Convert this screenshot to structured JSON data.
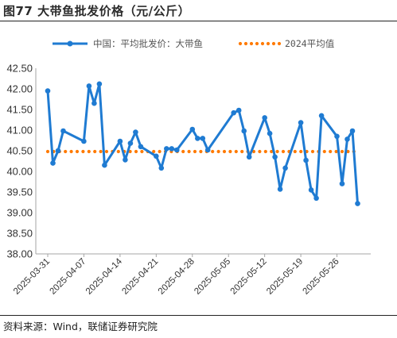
{
  "title": "图77 大带鱼批发价格（元/公斤）",
  "source": "资料来源：Wind，联储证券研究院",
  "colors": {
    "series_line": "#1f7bd2",
    "avg_line": "#ff7a00",
    "axis": "#a6a6a6"
  },
  "chart_data": {
    "type": "line",
    "title": "图77 大带鱼批发价格（元/公斤）",
    "xlabel": "",
    "ylabel": "",
    "ylim": [
      38.0,
      42.5
    ],
    "yticks": [
      "42.50",
      "42.00",
      "41.50",
      "41.00",
      "40.50",
      "40.00",
      "39.50",
      "39.00",
      "38.50",
      "38.00"
    ],
    "xticks": [
      "2025-03-31",
      "2025-04-07",
      "2025-04-14",
      "2025-04-21",
      "2025-04-28",
      "2025-05-05",
      "2025-05-12",
      "2025-05-19",
      "2025-05-26"
    ],
    "xlim": [
      "2025-03-31",
      "2025-05-31"
    ],
    "grid": false,
    "legend_position": "top",
    "series": [
      {
        "name": "中国：平均批发价：大带鱼",
        "style": "line-marker",
        "x": [
          "2025-03-31",
          "2025-04-01",
          "2025-04-02",
          "2025-04-03",
          "2025-04-07",
          "2025-04-08",
          "2025-04-09",
          "2025-04-10",
          "2025-04-11",
          "2025-04-14",
          "2025-04-15",
          "2025-04-16",
          "2025-04-17",
          "2025-04-18",
          "2025-04-21",
          "2025-04-22",
          "2025-04-23",
          "2025-04-24",
          "2025-04-25",
          "2025-04-28",
          "2025-04-29",
          "2025-04-30",
          "2025-05-01",
          "2025-05-06",
          "2025-05-07",
          "2025-05-08",
          "2025-05-09",
          "2025-05-12",
          "2025-05-13",
          "2025-05-14",
          "2025-05-15",
          "2025-05-16",
          "2025-05-19",
          "2025-05-20",
          "2025-05-21",
          "2025-05-22",
          "2025-05-23",
          "2025-05-26",
          "2025-05-27",
          "2025-05-28",
          "2025-05-29",
          "2025-05-30"
        ],
        "values": [
          41.95,
          40.2,
          40.5,
          40.98,
          40.73,
          42.07,
          41.65,
          42.12,
          40.15,
          40.73,
          40.28,
          40.68,
          40.95,
          40.6,
          40.37,
          40.08,
          40.55,
          40.55,
          40.52,
          41.02,
          40.8,
          40.8,
          40.52,
          41.42,
          41.48,
          40.98,
          40.35,
          41.3,
          40.92,
          40.35,
          39.57,
          40.08,
          41.18,
          40.27,
          39.55,
          39.35,
          41.35,
          40.85,
          39.7,
          40.78,
          40.98,
          39.22
        ]
      },
      {
        "name": "2024平均值",
        "style": "dotted",
        "x": [
          "2025-03-31",
          "2025-05-30"
        ],
        "values": [
          40.48,
          40.48
        ]
      }
    ]
  }
}
